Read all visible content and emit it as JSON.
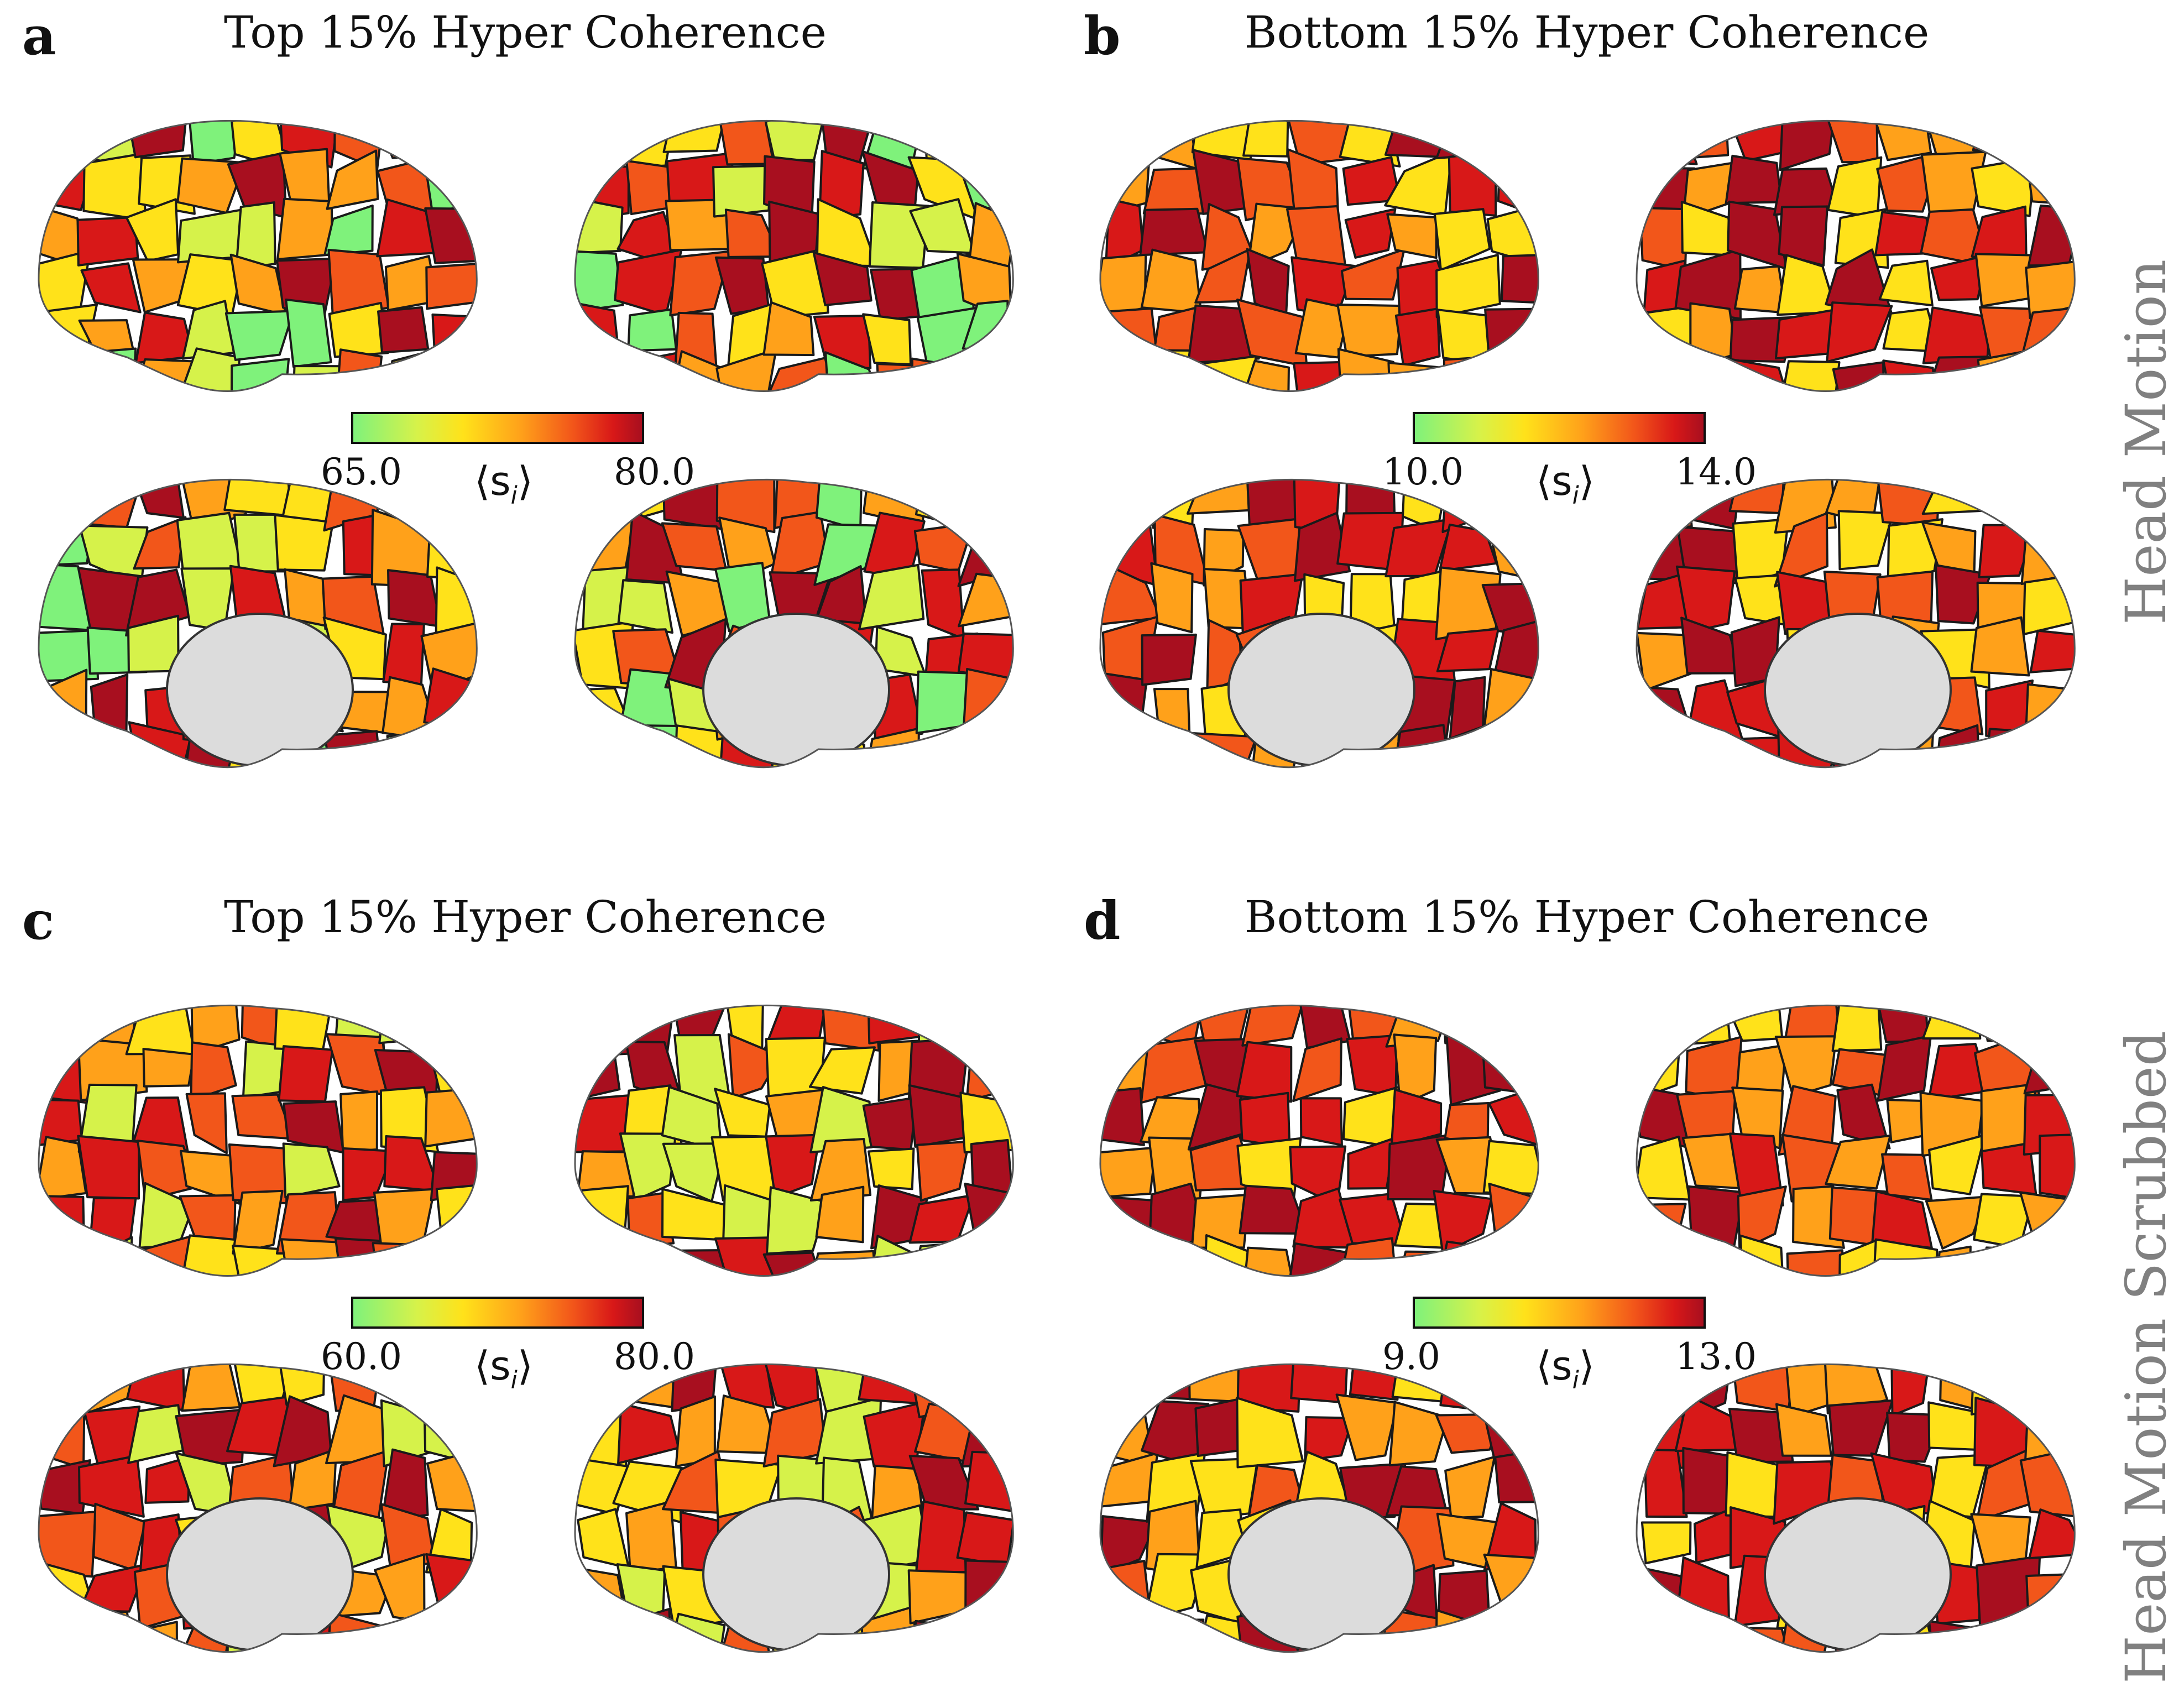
{
  "panels": [
    {
      "letter": "a",
      "title": "Top 15% Hyper Coherence",
      "colorbar": {
        "min": "65.0",
        "max": "80.0",
        "label": "⟨s",
        "label_sub": "i",
        "label_end": "⟩"
      }
    },
    {
      "letter": "b",
      "title": "Bottom 15% Hyper Coherence",
      "colorbar": {
        "min": "10.0",
        "max": "14.0",
        "label": "⟨s",
        "label_sub": "i",
        "label_end": "⟩"
      }
    },
    {
      "letter": "c",
      "title": "Top 15% Hyper Coherence",
      "colorbar": {
        "min": "60.0",
        "max": "80.0",
        "label": "⟨s",
        "label_sub": "i",
        "label_end": "⟩"
      }
    },
    {
      "letter": "d",
      "title": "Bottom 15% Hyper Coherence",
      "colorbar": {
        "min": "9.0",
        "max": "13.0",
        "label": "⟨s",
        "label_sub": "i",
        "label_end": "⟩"
      }
    }
  ],
  "row_labels": {
    "top": "Head Motion",
    "bottom": "Head Motion Scrubbed"
  },
  "colormap": [
    "#7ff27b",
    "#d6f24a",
    "#ffe21a",
    "#ffa11a",
    "#f2561a",
    "#d81818",
    "#a80f1f"
  ],
  "medial_wall_color": "#dcdcdc"
}
